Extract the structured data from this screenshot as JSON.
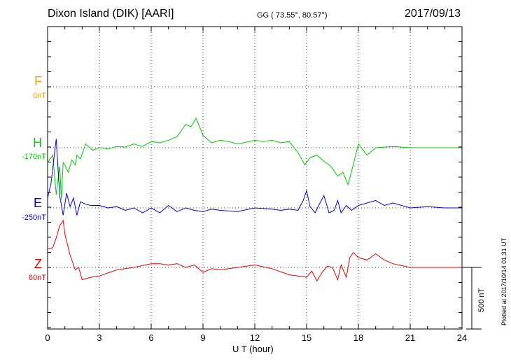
{
  "header": {
    "station": "Dixon Island (DIK)  [AARI]",
    "coords": "GG ( 73.55°,  80.57°)",
    "date": "2017/09/13"
  },
  "components": [
    {
      "letter": "F",
      "baseline": "0nT",
      "color": "#f0a000"
    },
    {
      "letter": "H",
      "baseline": "-170nT",
      "color": "#00cc00"
    },
    {
      "letter": "E",
      "baseline": "-250nT",
      "color": "#0000dd"
    },
    {
      "letter": "Z",
      "baseline": "60nT",
      "color": "#ee0000"
    }
  ],
  "footer": {
    "plotted": "Plotted at 2017/10/14 01:31  UT",
    "scale": "500 nT"
  },
  "chart_data": {
    "type": "line",
    "xlabel": "U T (hour)",
    "xlim": [
      0,
      24
    ],
    "xticks": [
      "0",
      "3",
      "6",
      "9",
      "12",
      "15",
      "18",
      "21",
      "24"
    ],
    "ylabel": "",
    "scale_nT": 500,
    "grid": true,
    "series": [
      {
        "name": "H",
        "color": "#00cc00",
        "baseline_nT": -170,
        "x": [
          0,
          0.3,
          0.5,
          0.7,
          0.8,
          0.9,
          1.0,
          1.2,
          1.4,
          1.6,
          1.7,
          1.9,
          2.2,
          2.6,
          3.0,
          3.5,
          4.0,
          4.5,
          5.0,
          5.5,
          6.0,
          6.5,
          7.0,
          7.5,
          8.0,
          8.3,
          8.6,
          9.0,
          9.5,
          10.0,
          10.5,
          11.0,
          12.0,
          12.5,
          13.0,
          13.5,
          14.0,
          14.5,
          14.9,
          15.2,
          15.6,
          16.0,
          16.4,
          16.8,
          17.1,
          17.4,
          17.7,
          18.0,
          18.5,
          19.0,
          20.0,
          21.0,
          22.0,
          23.0,
          24.0
        ],
        "y": [
          -120,
          -60,
          -380,
          -150,
          -420,
          -120,
          -140,
          -200,
          -100,
          -140,
          -60,
          -90,
          30,
          -20,
          0,
          -10,
          10,
          5,
          30,
          10,
          50,
          40,
          60,
          90,
          190,
          170,
          240,
          100,
          40,
          60,
          50,
          30,
          60,
          50,
          60,
          40,
          50,
          -40,
          -140,
          -80,
          -60,
          -110,
          -150,
          -230,
          -200,
          -300,
          -140,
          30,
          -60,
          0,
          10,
          0,
          0,
          0,
          0
        ]
      },
      {
        "name": "E",
        "color": "#0000dd",
        "baseline_nT": -250,
        "x": [
          0,
          0.2,
          0.5,
          0.7,
          0.9,
          1.1,
          1.3,
          1.5,
          1.7,
          1.9,
          2.2,
          2.5,
          3.0,
          3.5,
          4.0,
          4.5,
          5.0,
          5.5,
          6.0,
          6.5,
          7.0,
          7.5,
          8.0,
          8.5,
          9.0,
          9.5,
          10.0,
          11.0,
          12.0,
          13.0,
          13.5,
          14.0,
          14.5,
          14.8,
          15.0,
          15.2,
          15.5,
          15.7,
          16.0,
          16.3,
          16.6,
          16.8,
          17.0,
          17.3,
          17.6,
          18.0,
          18.5,
          19.0,
          19.5,
          20.0,
          21.0,
          22.0,
          23.0,
          24.0
        ],
        "y": [
          80,
          200,
          560,
          100,
          -60,
          120,
          10,
          80,
          -60,
          50,
          30,
          20,
          20,
          0,
          10,
          -20,
          0,
          -40,
          0,
          -40,
          20,
          -30,
          0,
          -20,
          -30,
          -10,
          -20,
          -30,
          0,
          -10,
          -20,
          -10,
          -20,
          60,
          140,
          10,
          -40,
          20,
          100,
          -40,
          -20,
          60,
          -40,
          20,
          -20,
          20,
          40,
          60,
          20,
          40,
          0,
          10,
          0,
          0
        ]
      },
      {
        "name": "Z",
        "color": "#ee0000",
        "baseline_nT": 60,
        "x": [
          0,
          0.3,
          0.5,
          0.7,
          0.9,
          1.0,
          1.3,
          1.6,
          1.8,
          2.0,
          2.5,
          3.0,
          4.0,
          5.0,
          6.0,
          6.5,
          7.0,
          7.5,
          8.0,
          8.5,
          9.0,
          9.5,
          10.0,
          11.0,
          12.0,
          13.0,
          14.0,
          14.5,
          15.0,
          15.3,
          15.6,
          15.9,
          16.2,
          16.5,
          16.8,
          17.0,
          17.3,
          17.5,
          17.7,
          18.0,
          18.5,
          19.0,
          19.5,
          20.0,
          21.0,
          22.0,
          23.0,
          24.0
        ],
        "y": [
          150,
          160,
          240,
          340,
          380,
          270,
          100,
          -20,
          0,
          -100,
          -80,
          -70,
          -20,
          0,
          30,
          30,
          20,
          30,
          0,
          20,
          -40,
          -10,
          -20,
          0,
          20,
          -10,
          -60,
          -70,
          -80,
          -30,
          -110,
          -40,
          10,
          0,
          -100,
          20,
          -80,
          80,
          120,
          80,
          60,
          110,
          60,
          30,
          0,
          0,
          0,
          0
        ]
      }
    ]
  }
}
